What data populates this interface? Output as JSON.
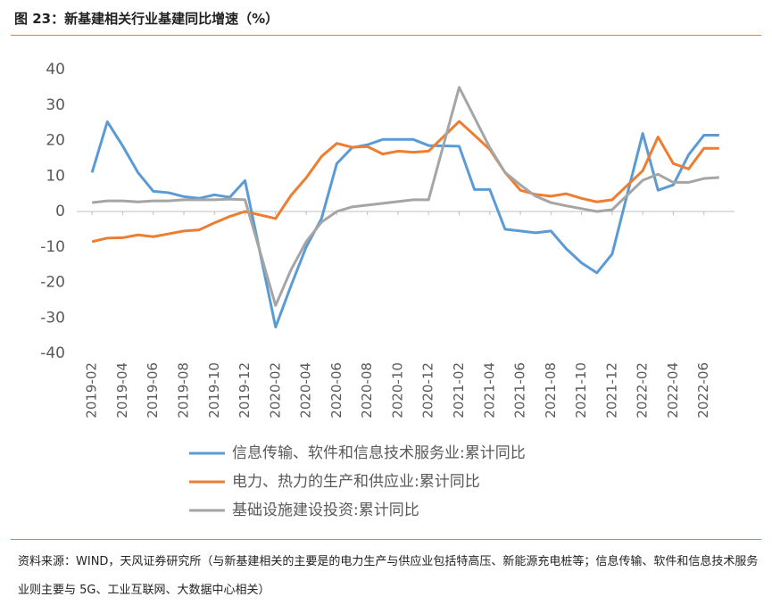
{
  "header": {
    "title": "图 23：新基建相关行业基建同比增速（%）"
  },
  "chart_data": {
    "type": "line",
    "x": [
      "2019-02",
      "2019-03",
      "2019-04",
      "2019-05",
      "2019-06",
      "2019-07",
      "2019-08",
      "2019-09",
      "2019-10",
      "2019-11",
      "2019-12",
      "2020-02",
      "2020-03",
      "2020-04",
      "2020-05",
      "2020-06",
      "2020-07",
      "2020-08",
      "2020-09",
      "2020-10",
      "2020-11",
      "2020-12",
      "2021-02",
      "2021-03",
      "2021-04",
      "2021-05",
      "2021-06",
      "2021-07",
      "2021-08",
      "2021-09",
      "2021-10",
      "2021-11",
      "2021-12",
      "2022-02",
      "2022-03",
      "2022-04",
      "2022-05",
      "2022-06",
      "2022-07"
    ],
    "series": [
      {
        "name": "信息传输、软件和信息技术服务业:累计同比",
        "color": "#5b9bd5",
        "values": [
          11,
          25.3,
          18.5,
          11,
          5.7,
          5.3,
          4.2,
          3.7,
          4.7,
          4.0,
          8.7,
          -32.6,
          -21,
          -10,
          -2,
          13.5,
          18,
          18.8,
          20.3,
          20.3,
          20.3,
          18.6,
          18.4,
          6.2,
          6.2,
          -5,
          -5.5,
          -6,
          -5.5,
          -10.5,
          -14.5,
          -17.3,
          -12,
          22,
          6,
          7.5,
          16,
          21.5,
          21.5
        ]
      },
      {
        "name": "电力、热力的生产和供应业:累计同比",
        "color": "#ed7d31",
        "values": [
          -8.5,
          -7.5,
          -7.4,
          -6.6,
          -7.1,
          -6.3,
          -5.5,
          -5.2,
          -3.2,
          -1.4,
          0,
          -2,
          4.5,
          9.5,
          15.5,
          19.2,
          18.1,
          18.3,
          16.2,
          17,
          16.7,
          17,
          25.4,
          21.5,
          17.5,
          11,
          6,
          4.8,
          4.3,
          5,
          3.7,
          2.7,
          3.3,
          11.5,
          21,
          13.5,
          12,
          17.8,
          17.8
        ]
      },
      {
        "name": "基础设施建设投资:累计同比",
        "color": "#a5a5a5",
        "values": [
          2.5,
          3,
          3,
          2.7,
          3,
          3,
          3.3,
          3.3,
          3.3,
          3.5,
          3.3,
          -26.5,
          -16.5,
          -8.5,
          -3,
          0,
          1.3,
          1.8,
          2.3,
          2.8,
          3.3,
          3.3,
          35,
          26.5,
          18,
          11,
          7.5,
          4.3,
          2.5,
          1.6,
          0.8,
          0,
          0.5,
          8.8,
          10.5,
          8.2,
          8.2,
          9.3,
          9.6
        ]
      }
    ],
    "xlim": [
      "2019-01",
      "2022-08"
    ],
    "xticks": [
      "2019-02",
      "2019-04",
      "2019-06",
      "2019-08",
      "2019-10",
      "2019-12",
      "2020-02",
      "2020-04",
      "2020-06",
      "2020-08",
      "2020-10",
      "2020-12",
      "2021-02",
      "2021-04",
      "2021-06",
      "2021-08",
      "2021-10",
      "2021-12",
      "2022-02",
      "2022-04",
      "2022-06"
    ],
    "ylim": [
      -40,
      40
    ],
    "yticks": [
      -40,
      -30,
      -20,
      -10,
      0,
      10,
      20,
      30,
      40
    ],
    "legend": "bottom"
  },
  "footer": {
    "source": "资料来源：WIND，天风证券研究所（与新基建相关的主要是的电力生产与供应业包括特高压、新能源充电桩等；信息传输、软件和信息技术服务业则主要与 5G、工业互联网、大数据中心相关）"
  }
}
